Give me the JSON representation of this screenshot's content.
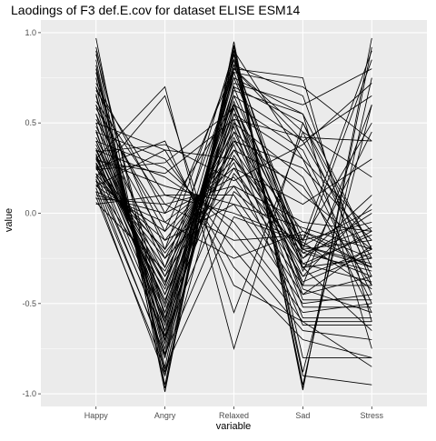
{
  "chart_data": {
    "type": "line",
    "title": "Laodings of F3 def.E.cov for dataset ELISE ESM14",
    "xlabel": "variable",
    "ylabel": "value",
    "categories": [
      "Happy",
      "Angry",
      "Relaxed",
      "Sad",
      "Stress"
    ],
    "ylim": [
      -1.07,
      1.07
    ],
    "y_ticks": [
      -1.0,
      -0.5,
      0.0,
      0.5,
      1.0
    ],
    "y_tick_labels": [
      "-1.0",
      "-0.5",
      "0.0",
      "0.5",
      "1.0"
    ],
    "panel_background": "#EBEBEB",
    "grid_color": "#FFFFFF",
    "line_color": "#000000",
    "series": [
      {
        "values": [
          0.97,
          -0.95,
          0.93,
          -0.98,
          0.97
        ]
      },
      {
        "values": [
          0.9,
          -0.99,
          0.95,
          -0.97,
          0.92
        ]
      },
      {
        "values": [
          0.85,
          -0.97,
          0.9,
          -0.95,
          0.75
        ]
      },
      {
        "values": [
          0.8,
          -0.9,
          0.88,
          -0.9,
          -0.95
        ]
      },
      {
        "values": [
          0.75,
          -0.85,
          0.92,
          -0.88,
          0.6
        ]
      },
      {
        "values": [
          0.7,
          -0.8,
          0.85,
          -0.8,
          -0.8
        ]
      },
      {
        "values": [
          0.65,
          -0.75,
          0.8,
          0.75,
          -0.6
        ]
      },
      {
        "values": [
          0.6,
          -0.7,
          0.78,
          0.7,
          0.4
        ]
      },
      {
        "values": [
          0.55,
          -0.65,
          0.82,
          0.65,
          -0.4
        ]
      },
      {
        "values": [
          0.5,
          -0.6,
          0.75,
          0.55,
          -0.2
        ]
      },
      {
        "values": [
          0.45,
          -0.55,
          0.7,
          0.5,
          -0.3
        ]
      },
      {
        "values": [
          0.4,
          -0.5,
          0.8,
          0.45,
          -0.35
        ]
      },
      {
        "values": [
          0.35,
          -0.45,
          0.65,
          0.4,
          -0.25
        ]
      },
      {
        "values": [
          0.3,
          -0.4,
          0.6,
          0.35,
          -0.45
        ]
      },
      {
        "values": [
          0.28,
          -0.35,
          0.55,
          0.3,
          -0.5
        ]
      },
      {
        "values": [
          0.25,
          -0.3,
          0.5,
          0.2,
          -0.55
        ]
      },
      {
        "values": [
          0.22,
          -0.25,
          0.45,
          0.1,
          -0.2
        ]
      },
      {
        "values": [
          0.2,
          -0.2,
          0.4,
          -0.1,
          -0.3
        ]
      },
      {
        "values": [
          0.18,
          -0.15,
          0.35,
          -0.2,
          -0.15
        ]
      },
      {
        "values": [
          0.15,
          -0.1,
          0.3,
          -0.25,
          0.1
        ]
      },
      {
        "values": [
          0.12,
          -0.05,
          0.25,
          -0.3,
          -0.1
        ]
      },
      {
        "values": [
          0.1,
          0.0,
          0.2,
          -0.35,
          0.05
        ]
      },
      {
        "values": [
          0.08,
          0.05,
          0.15,
          -0.4,
          -0.4
        ]
      },
      {
        "values": [
          0.05,
          0.1,
          0.1,
          -0.45,
          -0.35
        ]
      },
      {
        "values": [
          0.3,
          0.15,
          0.05,
          -0.5,
          -0.45
        ]
      },
      {
        "values": [
          0.35,
          0.2,
          -0.05,
          -0.55,
          -0.5
        ]
      },
      {
        "values": [
          0.4,
          0.25,
          -0.1,
          -0.6,
          -0.6
        ]
      },
      {
        "values": [
          0.45,
          0.3,
          -0.2,
          -0.65,
          -0.7
        ]
      },
      {
        "values": [
          0.5,
          0.35,
          -0.3,
          -0.7,
          -0.8
        ]
      },
      {
        "values": [
          0.25,
          0.4,
          -0.4,
          -0.6,
          -0.85
        ]
      },
      {
        "values": [
          0.2,
          0.65,
          -0.55,
          0.45,
          0.2
        ]
      },
      {
        "values": [
          0.3,
          0.7,
          -0.75,
          0.5,
          -0.2
        ]
      },
      {
        "values": [
          0.15,
          0.35,
          0.3,
          -0.15,
          0.5
        ]
      },
      {
        "values": [
          0.6,
          -0.1,
          0.8,
          0.4,
          0.65
        ]
      },
      {
        "values": [
          0.7,
          -0.2,
          0.85,
          -0.2,
          0.85
        ]
      },
      {
        "values": [
          0.55,
          -0.3,
          0.75,
          -0.15,
          0.9
        ]
      },
      {
        "values": [
          0.4,
          -0.4,
          0.9,
          0.3,
          -0.1
        ]
      },
      {
        "values": [
          0.35,
          -0.5,
          0.7,
          -0.3,
          -0.25
        ]
      },
      {
        "values": [
          0.28,
          -0.6,
          0.65,
          -0.18,
          -0.3
        ]
      },
      {
        "values": [
          0.22,
          -0.7,
          0.55,
          -0.2,
          -0.35
        ]
      },
      {
        "values": [
          0.18,
          -0.8,
          0.6,
          -0.25,
          0.0
        ]
      },
      {
        "values": [
          0.12,
          -0.9,
          0.5,
          -0.3,
          -0.65
        ]
      },
      {
        "values": [
          0.26,
          -0.65,
          0.45,
          -0.35,
          -0.2
        ]
      },
      {
        "values": [
          0.32,
          -0.55,
          0.4,
          0.25,
          -0.15
        ]
      },
      {
        "values": [
          0.38,
          -0.45,
          0.35,
          0.15,
          -0.4
        ]
      },
      {
        "values": [
          0.42,
          -0.35,
          0.25,
          0.05,
          0.3
        ]
      },
      {
        "values": [
          0.48,
          -0.25,
          0.15,
          -0.05,
          -0.1
        ]
      },
      {
        "values": [
          0.52,
          -0.15,
          0.05,
          -0.08,
          -0.2
        ]
      },
      {
        "values": [
          0.58,
          -0.05,
          -0.25,
          -0.1,
          -0.25
        ]
      },
      {
        "values": [
          0.62,
          0.05,
          -0.15,
          -0.12,
          -0.3
        ]
      },
      {
        "values": [
          0.68,
          0.1,
          0.0,
          -0.15,
          -0.05
        ]
      },
      {
        "values": [
          0.72,
          0.0,
          0.6,
          -0.18,
          -0.28
        ]
      },
      {
        "values": [
          0.88,
          -0.58,
          0.78,
          -0.22,
          -0.32
        ]
      },
      {
        "values": [
          0.92,
          -0.68,
          0.82,
          -0.28,
          -0.38
        ]
      },
      {
        "values": [
          0.78,
          -0.78,
          0.88,
          -0.32,
          0.45
        ]
      },
      {
        "values": [
          0.82,
          -0.88,
          0.72,
          0.6,
          0.8
        ]
      },
      {
        "values": [
          0.66,
          -0.72,
          0.68,
          0.55,
          -0.75
        ]
      },
      {
        "values": [
          0.46,
          -0.62,
          0.62,
          -0.42,
          -0.55
        ]
      },
      {
        "values": [
          0.36,
          -0.52,
          0.58,
          -0.48,
          -0.48
        ]
      },
      {
        "values": [
          0.16,
          -0.42,
          0.48,
          -0.52,
          -0.52
        ]
      },
      {
        "values": [
          0.06,
          -0.32,
          0.38,
          -0.58,
          -0.58
        ]
      },
      {
        "values": [
          0.26,
          -0.22,
          0.28,
          -0.62,
          -0.62
        ]
      },
      {
        "values": [
          0.24,
          0.28,
          0.58,
          -0.4,
          0.6
        ]
      },
      {
        "values": [
          0.27,
          -0.38,
          0.52,
          -0.45,
          -0.18
        ]
      },
      {
        "values": [
          0.31,
          -0.48,
          0.42,
          -0.38,
          -0.22
        ]
      },
      {
        "values": [
          0.33,
          -0.58,
          0.32,
          -0.28,
          -0.12
        ]
      },
      {
        "values": [
          0.19,
          -0.68,
          0.22,
          -0.22,
          -0.08
        ]
      },
      {
        "values": [
          0.14,
          -0.78,
          0.12,
          -0.18,
          0.02
        ]
      },
      {
        "values": [
          0.09,
          -0.86,
          -0.02,
          -0.16,
          -0.42
        ]
      },
      {
        "values": [
          0.29,
          0.22,
          0.52,
          0.42,
          0.4
        ]
      },
      {
        "values": [
          0.34,
          0.38,
          0.18,
          0.38,
          0.72
        ]
      }
    ]
  }
}
